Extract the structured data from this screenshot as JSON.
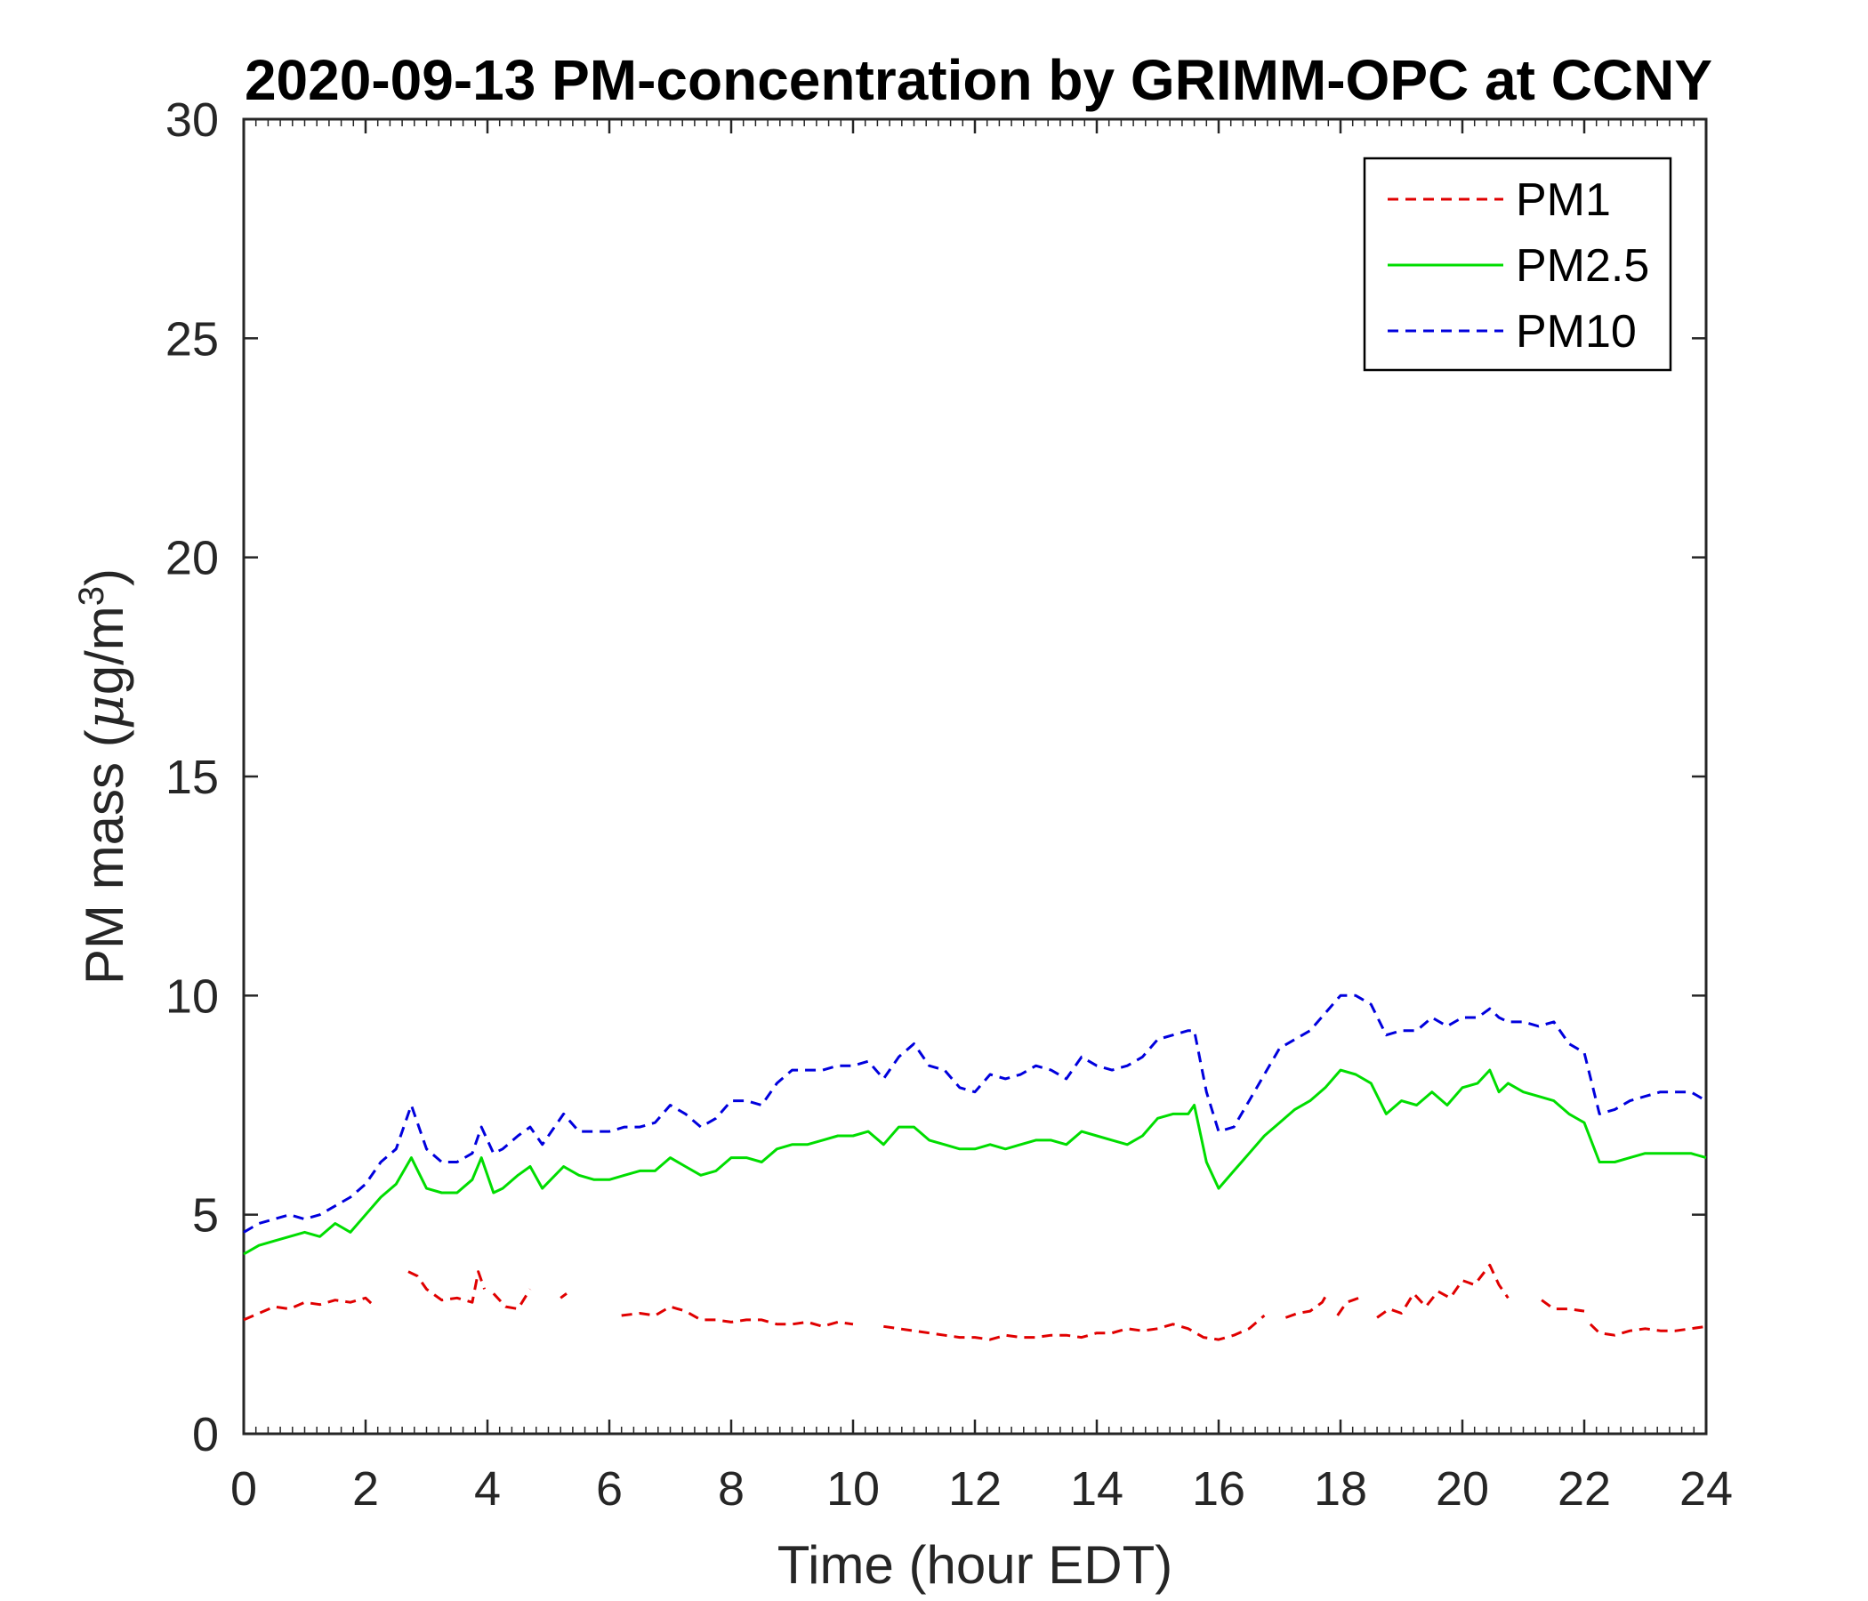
{
  "chart_data": {
    "type": "line",
    "title": "2020-09-13 PM-concentration by GRIMM-OPC at CCNY",
    "xlabel": "Time (hour EDT)",
    "ylabel_main": "PM mass (",
    "ylabel_mu": "μ",
    "ylabel_unit": "g/m",
    "ylabel_sup": "3",
    "ylabel_close": ")",
    "xlim": [
      0,
      24
    ],
    "ylim": [
      0,
      30
    ],
    "xticks": [
      0,
      2,
      4,
      6,
      8,
      10,
      12,
      14,
      16,
      18,
      20,
      22,
      24
    ],
    "yticks": [
      0,
      5,
      10,
      15,
      20,
      25,
      30
    ],
    "grid": false,
    "legend_position": "top-right",
    "series": [
      {
        "name": "PM1",
        "color": "#e00000",
        "style": "dashed",
        "x": [
          0,
          0.25,
          0.5,
          0.75,
          1,
          1.25,
          1.5,
          1.75,
          2,
          2.15,
          null,
          2.7,
          2.85,
          3.0,
          3.25,
          3.5,
          3.75,
          3.85,
          3.95,
          null,
          4.1,
          4.3,
          4.5,
          4.7,
          null,
          5.2,
          5.3,
          null,
          6.2,
          6.5,
          6.75,
          7,
          7.25,
          7.5,
          7.75,
          8,
          8.25,
          8.5,
          8.75,
          9,
          9.25,
          9.5,
          9.75,
          10.0,
          null,
          10.5,
          10.75,
          11,
          11.25,
          11.5,
          11.75,
          12,
          12.25,
          12.5,
          12.75,
          13,
          13.25,
          13.5,
          13.75,
          14,
          14.25,
          14.5,
          14.75,
          15,
          15.25,
          15.5,
          15.75,
          16,
          16.25,
          16.5,
          16.75,
          null,
          17.1,
          17.3,
          17.5,
          17.7,
          17.8,
          null,
          17.95,
          18.1,
          18.3,
          null,
          18.6,
          18.8,
          19.0,
          19.2,
          19.4,
          19.6,
          19.8,
          20.0,
          20.2,
          20.45,
          20.6,
          20.75,
          null,
          21.3,
          21.5,
          21.75,
          22,
          null,
          22.1,
          22.25,
          22.5,
          22.75,
          23,
          23.25,
          23.5,
          23.75,
          24
        ],
        "y": [
          2.6,
          2.75,
          2.9,
          2.85,
          3.0,
          2.95,
          3.05,
          3.0,
          3.1,
          2.9,
          null,
          3.7,
          3.6,
          3.3,
          3.05,
          3.1,
          3.0,
          3.7,
          3.3,
          null,
          3.2,
          2.9,
          2.85,
          3.3,
          null,
          3.1,
          3.2,
          null,
          2.7,
          2.75,
          2.7,
          2.9,
          2.8,
          2.6,
          2.6,
          2.55,
          2.6,
          2.6,
          2.5,
          2.5,
          2.55,
          2.45,
          2.55,
          2.5,
          null,
          2.45,
          2.4,
          2.35,
          2.3,
          2.25,
          2.2,
          2.2,
          2.15,
          2.25,
          2.2,
          2.2,
          2.25,
          2.25,
          2.2,
          2.3,
          2.3,
          2.4,
          2.35,
          2.4,
          2.5,
          2.4,
          2.2,
          2.15,
          2.25,
          2.4,
          2.7,
          null,
          2.65,
          2.75,
          2.8,
          3.0,
          3.25,
          null,
          2.7,
          3.0,
          3.1,
          null,
          2.65,
          2.85,
          2.75,
          3.2,
          2.9,
          3.25,
          3.1,
          3.5,
          3.4,
          3.85,
          3.4,
          3.1,
          null,
          3.05,
          2.85,
          2.85,
          2.8,
          null,
          2.5,
          2.3,
          2.25,
          2.35,
          2.4,
          2.35,
          2.35,
          2.4,
          2.45
        ]
      },
      {
        "name": "PM2.5",
        "color": "#00dd00",
        "style": "solid",
        "x": [
          0,
          0.25,
          0.5,
          0.75,
          1,
          1.25,
          1.5,
          1.75,
          2,
          2.25,
          2.5,
          2.75,
          3,
          3.25,
          3.5,
          3.75,
          3.9,
          4.1,
          4.25,
          4.5,
          4.7,
          4.9,
          5.25,
          5.5,
          5.75,
          6,
          6.25,
          6.5,
          6.75,
          7,
          7.25,
          7.5,
          7.75,
          8,
          8.25,
          8.5,
          8.75,
          9,
          9.25,
          9.5,
          9.75,
          10,
          10.25,
          10.5,
          10.75,
          11,
          11.25,
          11.5,
          11.75,
          12,
          12.25,
          12.5,
          12.75,
          13,
          13.25,
          13.5,
          13.75,
          14,
          14.25,
          14.5,
          14.75,
          15,
          15.25,
          15.5,
          15.6,
          15.8,
          16,
          16.25,
          16.5,
          16.75,
          17,
          17.25,
          17.5,
          17.75,
          18,
          18.25,
          18.5,
          18.75,
          19,
          19.25,
          19.5,
          19.75,
          20,
          20.25,
          20.45,
          20.6,
          20.75,
          21,
          21.25,
          21.5,
          21.75,
          22,
          22.25,
          22.5,
          22.75,
          23,
          23.25,
          23.5,
          23.75,
          24
        ],
        "y": [
          4.1,
          4.3,
          4.4,
          4.5,
          4.6,
          4.5,
          4.8,
          4.6,
          5.0,
          5.4,
          5.7,
          6.3,
          5.6,
          5.5,
          5.5,
          5.8,
          6.3,
          5.5,
          5.6,
          5.9,
          6.1,
          5.6,
          6.1,
          5.9,
          5.8,
          5.8,
          5.9,
          6.0,
          6.0,
          6.3,
          6.1,
          5.9,
          6.0,
          6.3,
          6.3,
          6.2,
          6.5,
          6.6,
          6.6,
          6.7,
          6.8,
          6.8,
          6.9,
          6.6,
          7.0,
          7.0,
          6.7,
          6.6,
          6.5,
          6.5,
          6.6,
          6.5,
          6.6,
          6.7,
          6.7,
          6.6,
          6.9,
          6.8,
          6.7,
          6.6,
          6.8,
          7.2,
          7.3,
          7.3,
          7.5,
          6.2,
          5.6,
          6.0,
          6.4,
          6.8,
          7.1,
          7.4,
          7.6,
          7.9,
          8.3,
          8.2,
          8.0,
          7.3,
          7.6,
          7.5,
          7.8,
          7.5,
          7.9,
          8.0,
          8.3,
          7.8,
          8.0,
          7.8,
          7.7,
          7.6,
          7.3,
          7.1,
          6.2,
          6.2,
          6.3,
          6.4,
          6.4,
          6.4,
          6.4,
          6.3
        ]
      },
      {
        "name": "PM10",
        "color": "#0000dd",
        "style": "dashed",
        "x": [
          0,
          0.25,
          0.5,
          0.75,
          1,
          1.25,
          1.5,
          1.75,
          2,
          2.25,
          2.5,
          2.75,
          3,
          3.25,
          3.5,
          3.75,
          3.9,
          4.1,
          4.25,
          4.5,
          4.7,
          4.9,
          5.25,
          5.5,
          5.75,
          6,
          6.25,
          6.5,
          6.75,
          7,
          7.25,
          7.5,
          7.75,
          8,
          8.25,
          8.5,
          8.75,
          9,
          9.25,
          9.5,
          9.75,
          10,
          10.25,
          10.5,
          10.75,
          11,
          11.25,
          11.5,
          11.75,
          12,
          12.25,
          12.5,
          12.75,
          13,
          13.25,
          13.5,
          13.75,
          14,
          14.25,
          14.5,
          14.75,
          15,
          15.25,
          15.5,
          15.6,
          15.8,
          16,
          16.25,
          16.5,
          16.75,
          17,
          17.25,
          17.5,
          17.75,
          18,
          18.25,
          18.5,
          18.75,
          19,
          19.25,
          19.5,
          19.75,
          20,
          20.25,
          20.45,
          20.6,
          20.75,
          21,
          21.25,
          21.5,
          21.75,
          22,
          22.25,
          22.5,
          22.75,
          23,
          23.25,
          23.5,
          23.75,
          24
        ],
        "y": [
          4.6,
          4.8,
          4.9,
          5.0,
          4.9,
          5.0,
          5.2,
          5.4,
          5.7,
          6.2,
          6.5,
          7.5,
          6.5,
          6.2,
          6.2,
          6.4,
          7.0,
          6.4,
          6.5,
          6.8,
          7.0,
          6.6,
          7.3,
          6.9,
          6.9,
          6.9,
          7.0,
          7.0,
          7.1,
          7.5,
          7.3,
          7.0,
          7.2,
          7.6,
          7.6,
          7.5,
          8.0,
          8.3,
          8.3,
          8.3,
          8.4,
          8.4,
          8.5,
          8.1,
          8.6,
          8.9,
          8.4,
          8.3,
          7.9,
          7.8,
          8.2,
          8.1,
          8.2,
          8.4,
          8.3,
          8.1,
          8.6,
          8.4,
          8.3,
          8.4,
          8.6,
          9.0,
          9.1,
          9.2,
          9.2,
          7.8,
          6.9,
          7.0,
          7.6,
          8.2,
          8.8,
          9.0,
          9.2,
          9.6,
          10.0,
          10.0,
          9.8,
          9.1,
          9.2,
          9.2,
          9.5,
          9.3,
          9.5,
          9.5,
          9.7,
          9.5,
          9.4,
          9.4,
          9.3,
          9.4,
          8.9,
          8.7,
          7.3,
          7.4,
          7.6,
          7.7,
          7.8,
          7.8,
          7.8,
          7.6
        ]
      }
    ]
  }
}
